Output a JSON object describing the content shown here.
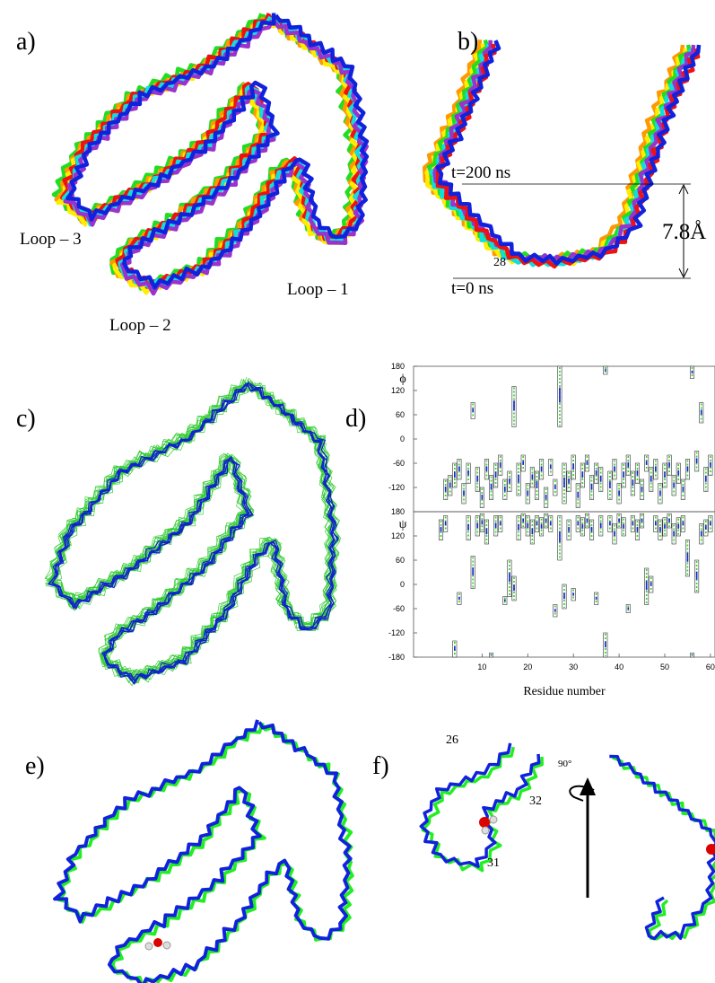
{
  "panels": {
    "labels": [
      "a)",
      "b)",
      "c)",
      "d)",
      "e)",
      "f)"
    ]
  },
  "annotations": {
    "a": [
      "Loop – 3",
      "Loop – 2",
      "Loop – 1"
    ],
    "b": [
      "t=200 ns",
      "t=0 ns",
      "7.8Å",
      "28"
    ],
    "f": [
      "26",
      "32",
      "31",
      "90°"
    ]
  },
  "chart_data": [
    {
      "type": "range",
      "y_label": "ϕ",
      "xlim": [
        -5,
        61
      ],
      "ylim": [
        -180,
        180
      ],
      "yticks": [
        -120,
        -60,
        0,
        60,
        120,
        180
      ],
      "residues": [
        2,
        3,
        4,
        5,
        6,
        7,
        8,
        9,
        10,
        11,
        12,
        13,
        14,
        15,
        16,
        17,
        18,
        19,
        20,
        21,
        22,
        23,
        24,
        25,
        26,
        27,
        28,
        29,
        30,
        31,
        32,
        33,
        34,
        35,
        36,
        37,
        38,
        39,
        40,
        41,
        42,
        43,
        44,
        45,
        46,
        47,
        48,
        49,
        50,
        51,
        52,
        53,
        54,
        55,
        56,
        57,
        58,
        59,
        60
      ],
      "low": [
        -150,
        -140,
        -120,
        -100,
        -160,
        -110,
        50,
        -130,
        -170,
        -100,
        -150,
        -120,
        -90,
        -150,
        -130,
        30,
        -140,
        -80,
        -160,
        -120,
        -150,
        -100,
        -170,
        -90,
        -140,
        30,
        -160,
        -130,
        -100,
        -170,
        -120,
        -80,
        -150,
        -110,
        -130,
        160,
        -150,
        -100,
        -160,
        -120,
        -90,
        -140,
        -110,
        -150,
        -80,
        -130,
        -100,
        -160,
        -120,
        -90,
        -140,
        -110,
        -150,
        -100,
        150,
        -80,
        40,
        -130,
        -90
      ],
      "high": [
        -100,
        -90,
        -60,
        -50,
        -110,
        -60,
        90,
        -70,
        -120,
        -50,
        -90,
        -60,
        -40,
        -100,
        -80,
        130,
        -60,
        -40,
        -110,
        -70,
        -80,
        -50,
        -120,
        -50,
        -100,
        180,
        -60,
        -80,
        -40,
        -110,
        -60,
        -40,
        -90,
        -60,
        -70,
        180,
        -80,
        -50,
        -110,
        -60,
        -40,
        -80,
        -60,
        -100,
        -40,
        -70,
        -50,
        -110,
        -60,
        -40,
        -90,
        -60,
        -100,
        -50,
        180,
        -30,
        90,
        -70,
        -40
      ]
    },
    {
      "type": "range",
      "y_label": "ψ",
      "x_label": "Residue number",
      "xlim": [
        -5,
        61
      ],
      "xticks": [
        10,
        20,
        30,
        40,
        50,
        60
      ],
      "ylim": [
        -180,
        180
      ],
      "yticks": [
        -180,
        -120,
        -60,
        0,
        60,
        120,
        180
      ],
      "residues": [
        1,
        2,
        4,
        5,
        7,
        8,
        9,
        10,
        11,
        12,
        13,
        14,
        15,
        16,
        17,
        18,
        19,
        20,
        21,
        22,
        23,
        24,
        25,
        26,
        27,
        28,
        29,
        30,
        31,
        32,
        33,
        34,
        35,
        36,
        37,
        38,
        39,
        40,
        41,
        42,
        43,
        44,
        45,
        46,
        47,
        48,
        49,
        50,
        51,
        52,
        53,
        54,
        55,
        56,
        57,
        58,
        59,
        60
      ],
      "low": [
        110,
        130,
        -180,
        -50,
        110,
        -10,
        120,
        130,
        100,
        -180,
        120,
        130,
        -50,
        -30,
        -40,
        110,
        140,
        120,
        100,
        130,
        120,
        140,
        130,
        -80,
        60,
        -60,
        110,
        -40,
        130,
        120,
        140,
        110,
        -50,
        120,
        -180,
        130,
        100,
        140,
        120,
        -70,
        130,
        110,
        140,
        -50,
        -20,
        130,
        110,
        120,
        140,
        100,
        120,
        130,
        20,
        -180,
        -20,
        100,
        120,
        130
      ],
      "high": [
        160,
        170,
        -140,
        -20,
        170,
        70,
        170,
        175,
        160,
        -170,
        170,
        170,
        -30,
        60,
        20,
        170,
        175,
        170,
        160,
        170,
        165,
        175,
        170,
        -50,
        170,
        0,
        160,
        -10,
        170,
        165,
        175,
        160,
        -20,
        170,
        -120,
        170,
        150,
        175,
        165,
        -50,
        170,
        160,
        175,
        40,
        20,
        170,
        160,
        165,
        175,
        150,
        165,
        170,
        110,
        -170,
        60,
        150,
        160,
        170
      ]
    }
  ]
}
